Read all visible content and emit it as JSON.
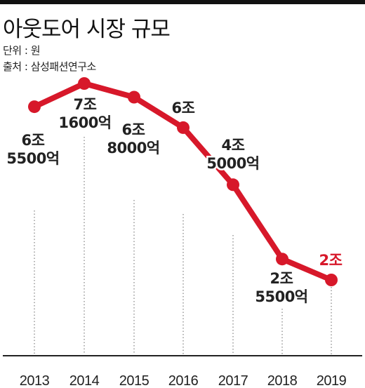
{
  "title": "아웃도어 시장 규모",
  "unit_label": "단위 : 원",
  "source_label": "출처 : 삼성패션연구소",
  "chart_data": {
    "type": "line",
    "title": "아웃도어 시장 규모",
    "xlabel": "",
    "ylabel": "",
    "categories": [
      "2013",
      "2014",
      "2015",
      "2016",
      "2017",
      "2018",
      "2019"
    ],
    "series": [
      {
        "values": [
          6.55,
          7.16,
          6.8,
          6.0,
          4.5,
          2.55,
          2.0
        ],
        "labels": [
          [
            "6조",
            "5500억"
          ],
          [
            "7조",
            "1600억"
          ],
          [
            "6조",
            "8000억"
          ],
          [
            "6조"
          ],
          [
            "4조",
            "5000억"
          ],
          [
            "2조",
            "5500억"
          ],
          [
            "2조"
          ]
        ]
      }
    ],
    "unit": "원",
    "grid": "vertical dotted lines",
    "legend": "none",
    "colors": {
      "line": "#d7182a",
      "highlight_label": "#d7182a",
      "default_label": "#222222"
    }
  }
}
